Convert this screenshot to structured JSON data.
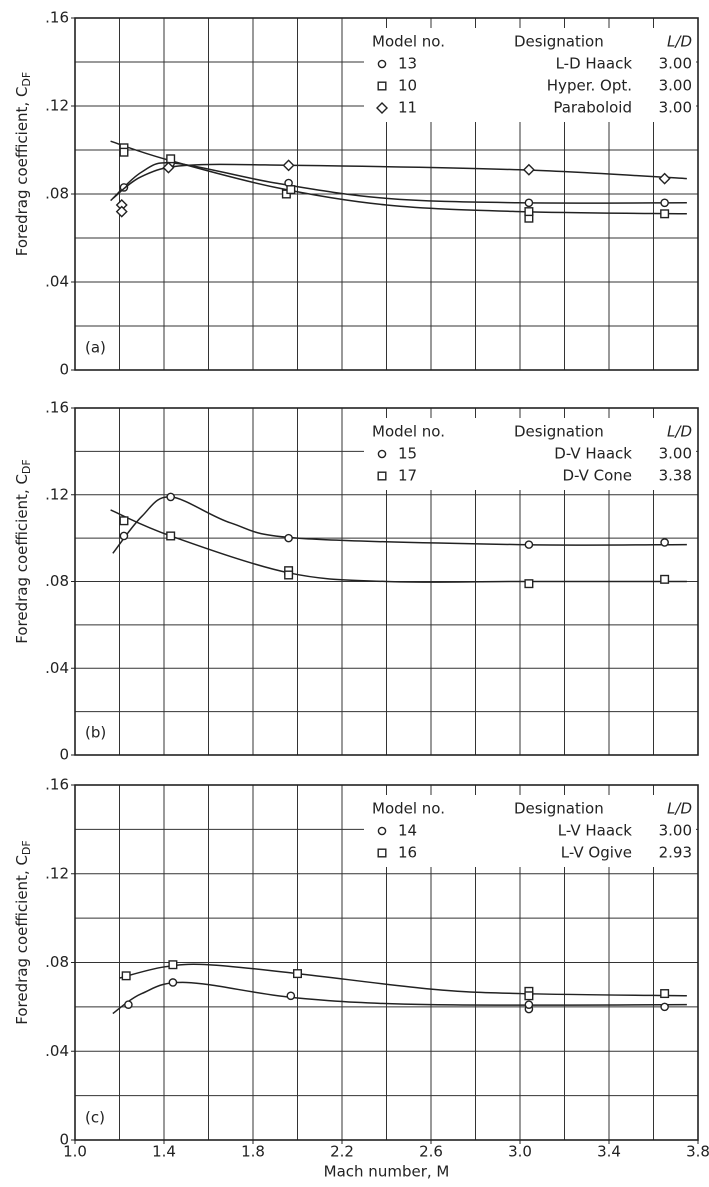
{
  "chart_data": [
    {
      "type": "scatter",
      "panel_label": "(a)",
      "ylabel": "Foredrag coefficient, C",
      "ylabel_sub": "DF",
      "xlim": [
        1.0,
        3.8
      ],
      "ylim": [
        0,
        0.16
      ],
      "yticks": [
        0,
        {
          "value": 0.04,
          "label": ".04"
        },
        {
          "value": 0.08,
          "label": ".08"
        },
        {
          "value": 0.12,
          "label": ".12"
        },
        {
          "value": 0.16,
          "label": ".16"
        }
      ],
      "xgrid": [
        1.2,
        1.4,
        1.6,
        1.8,
        2.0,
        2.2,
        2.4,
        2.6,
        2.8,
        3.0,
        3.2,
        3.4,
        3.6
      ],
      "ygrid": [
        0.02,
        0.04,
        0.06,
        0.08,
        0.1,
        0.12,
        0.14
      ],
      "grid": true,
      "legend": "upper right",
      "color": "#222",
      "legend_headers": [
        "Model no.",
        "Designation",
        "L/D"
      ],
      "series": [
        {
          "name": "13",
          "designation": "L-D Haack",
          "ld": "3.00",
          "marker": "circle",
          "x": [
            1.22,
            1.43,
            1.96,
            3.04,
            3.65
          ],
          "values": [
            0.083,
            0.094,
            0.085,
            0.076,
            0.076
          ],
          "curve_x": [
            1.16,
            1.3,
            1.45,
            1.9,
            2.4,
            3.0,
            3.75
          ],
          "curve_y": [
            0.077,
            0.09,
            0.094,
            0.085,
            0.078,
            0.076,
            0.076
          ]
        },
        {
          "name": "10",
          "designation": "Hyper. Opt.",
          "ld": "3.00",
          "marker": "square",
          "x": [
            1.22,
            1.22,
            1.43,
            1.95,
            1.97,
            3.04,
            3.04,
            3.65
          ],
          "values": [
            0.101,
            0.099,
            0.096,
            0.08,
            0.082,
            0.069,
            0.072,
            0.071
          ],
          "curve_x": [
            1.16,
            1.4,
            1.9,
            2.4,
            3.0,
            3.75
          ],
          "curve_y": [
            0.104,
            0.096,
            0.083,
            0.075,
            0.072,
            0.071
          ]
        },
        {
          "name": "11",
          "designation": "Paraboloid",
          "ld": "3.00",
          "marker": "diamond",
          "x": [
            1.21,
            1.21,
            1.42,
            1.96,
            3.04,
            3.65
          ],
          "values": [
            0.075,
            0.072,
            0.092,
            0.093,
            0.091,
            0.087
          ],
          "curve_x": [
            1.17,
            1.3,
            1.5,
            2.0,
            3.0,
            3.75
          ],
          "curve_y": [
            0.078,
            0.088,
            0.093,
            0.093,
            0.091,
            0.087
          ]
        }
      ]
    },
    {
      "type": "scatter",
      "panel_label": "(b)",
      "ylabel": "Foredrag coefficient, C",
      "ylabel_sub": "DF",
      "xlim": [
        1.0,
        3.8
      ],
      "ylim": [
        0,
        0.16
      ],
      "yticks": [
        0,
        {
          "value": 0.04,
          "label": ".04"
        },
        {
          "value": 0.08,
          "label": ".08"
        },
        {
          "value": 0.12,
          "label": ".12"
        },
        {
          "value": 0.16,
          "label": ".16"
        }
      ],
      "xgrid": [
        1.2,
        1.4,
        1.6,
        1.8,
        2.0,
        2.2,
        2.4,
        2.6,
        2.8,
        3.0,
        3.2,
        3.4,
        3.6
      ],
      "ygrid": [
        0.02,
        0.04,
        0.06,
        0.08,
        0.1,
        0.12,
        0.14
      ],
      "grid": true,
      "legend": "upper right",
      "color": "#222",
      "legend_headers": [
        "Model no.",
        "Designation",
        "L/D"
      ],
      "series": [
        {
          "name": "15",
          "designation": "D-V Haack",
          "ld": "3.00",
          "marker": "circle",
          "x": [
            1.22,
            1.43,
            1.96,
            3.04,
            3.65
          ],
          "values": [
            0.101,
            0.119,
            0.1,
            0.097,
            0.098
          ],
          "curve_x": [
            1.17,
            1.3,
            1.43,
            1.7,
            2.0,
            3.0,
            3.75
          ],
          "curve_y": [
            0.093,
            0.11,
            0.119,
            0.107,
            0.1,
            0.097,
            0.097
          ]
        },
        {
          "name": "17",
          "designation": "D-V Cone",
          "ld": "3.38",
          "marker": "square",
          "x": [
            1.22,
            1.43,
            1.96,
            1.96,
            3.04,
            3.65
          ],
          "values": [
            0.108,
            0.101,
            0.085,
            0.083,
            0.079,
            0.081
          ],
          "curve_x": [
            1.16,
            1.43,
            1.96,
            2.4,
            3.0,
            3.75
          ],
          "curve_y": [
            0.113,
            0.101,
            0.084,
            0.08,
            0.08,
            0.08
          ]
        }
      ]
    },
    {
      "type": "scatter",
      "panel_label": "(c)",
      "ylabel": "Foredrag coefficient, C",
      "ylabel_sub": "DF",
      "xlabel": "Mach number, M",
      "xlim": [
        1.0,
        3.8
      ],
      "ylim": [
        0,
        0.16
      ],
      "xticks": [
        {
          "value": 1.0,
          "label": "1.0"
        },
        1.4,
        1.8,
        2.2,
        2.6,
        {
          "value": 3.0,
          "label": "3.0"
        },
        3.4,
        3.8
      ],
      "yticks": [
        0,
        {
          "value": 0.04,
          "label": ".04"
        },
        {
          "value": 0.08,
          "label": ".08"
        },
        {
          "value": 0.12,
          "label": ".12"
        },
        {
          "value": 0.16,
          "label": ".16"
        }
      ],
      "xgrid": [
        1.2,
        1.4,
        1.6,
        1.8,
        2.0,
        2.2,
        2.4,
        2.6,
        2.8,
        3.0,
        3.2,
        3.4,
        3.6
      ],
      "ygrid": [
        0.02,
        0.04,
        0.06,
        0.08,
        0.1,
        0.12,
        0.14
      ],
      "grid": true,
      "legend": "upper right",
      "color": "#222",
      "legend_headers": [
        "Model no.",
        "Designation",
        "L/D"
      ],
      "series": [
        {
          "name": "14",
          "designation": "L-V Haack",
          "ld": "3.00",
          "marker": "circle",
          "x": [
            1.24,
            1.44,
            1.97,
            3.04,
            3.04,
            3.65
          ],
          "values": [
            0.061,
            0.071,
            0.065,
            0.059,
            0.061,
            0.06
          ],
          "curve_x": [
            1.17,
            1.3,
            1.5,
            2.0,
            2.6,
            3.75
          ],
          "curve_y": [
            0.057,
            0.066,
            0.071,
            0.064,
            0.061,
            0.061
          ]
        },
        {
          "name": "16",
          "designation": "L-V Ogive",
          "ld": "2.93",
          "marker": "square",
          "x": [
            1.23,
            1.44,
            2.0,
            3.04,
            3.04,
            3.65
          ],
          "values": [
            0.074,
            0.079,
            0.075,
            0.067,
            0.065,
            0.066
          ],
          "curve_x": [
            1.2,
            1.4,
            1.6,
            2.0,
            2.6,
            3.0,
            3.75
          ],
          "curve_y": [
            0.073,
            0.078,
            0.079,
            0.075,
            0.068,
            0.066,
            0.065
          ]
        }
      ]
    }
  ]
}
